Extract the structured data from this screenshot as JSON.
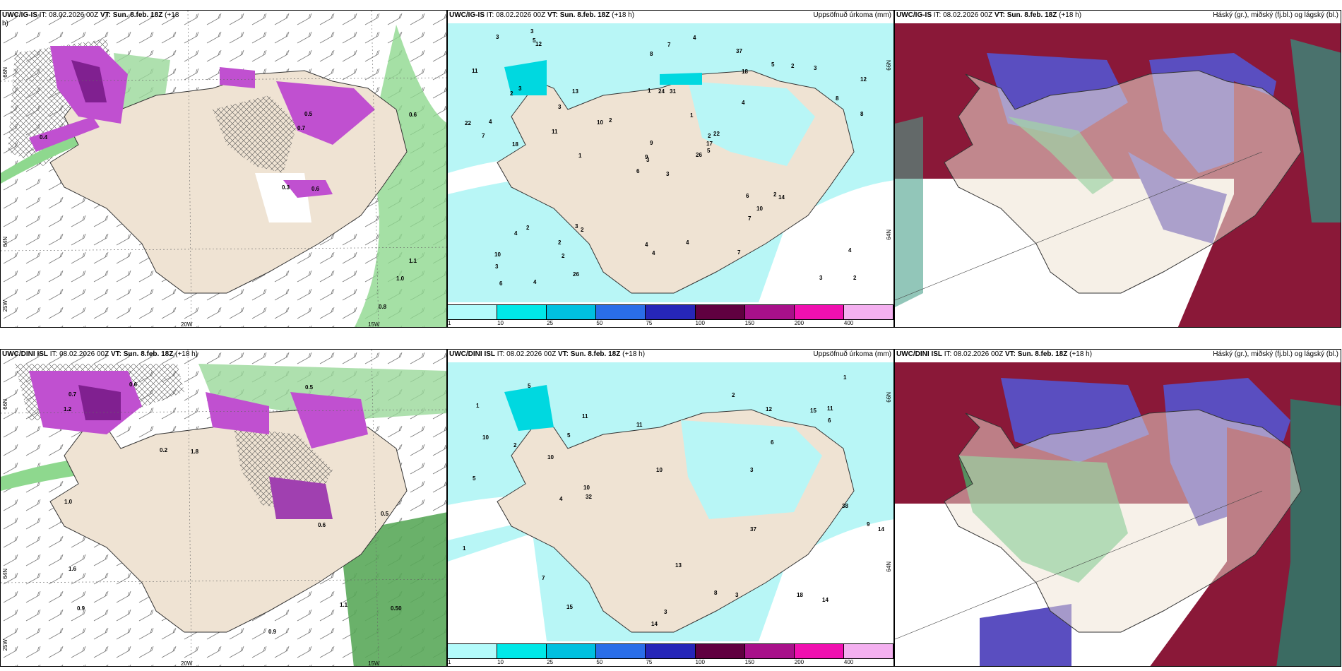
{
  "panels": {
    "p1": {
      "model": "UWC/IG-IS",
      "it": "IT: 08.02.2026 00Z",
      "vt_label": "VT:",
      "vt": "Sun. 8.feb. 18Z",
      "lead": "(+18",
      "lead2": "h)",
      "lat1": "66N",
      "lat2": "64N",
      "lat3": "25W",
      "lon1": "20W",
      "lon2": "15W",
      "lat_r": "",
      "vals": [
        "0.6",
        "0.5",
        "0.6",
        "0.7",
        "1.0",
        "0.8",
        "1.1",
        "0.4",
        "0.3"
      ]
    },
    "p2": {
      "model": "UWC/IG-IS",
      "it": "IT: 08.02.2026 00Z",
      "vt_label": "VT:",
      "vt": "Sun. 8.feb. 18Z",
      "lead": "(+18 h)",
      "title_r": "Uppsöfnuð úrkoma (mm)",
      "lat1": "66N",
      "lat2": "64N",
      "vals": [
        "3",
        "2",
        "3",
        "10",
        "2",
        "2",
        "37",
        "31",
        "18",
        "26",
        "12",
        "2",
        "18",
        "12",
        "6",
        "4",
        "4",
        "1",
        "1",
        "2",
        "2",
        "3",
        "2",
        "24",
        "22",
        "14",
        "3",
        "8",
        "7",
        "6",
        "8",
        "9",
        "4",
        "9",
        "13",
        "5",
        "3",
        "3",
        "4",
        "2",
        "4",
        "10",
        "11",
        "7",
        "26",
        "22",
        "17",
        "6",
        "4",
        "5",
        "4",
        "8",
        "11",
        "10",
        "7",
        "2",
        "5",
        "3",
        "4",
        "3",
        "7",
        "1",
        "4",
        "3",
        "2",
        "3"
      ]
    },
    "p3": {
      "model": "UWC/IG-IS",
      "it": "IT: 08.02.2026 00Z",
      "vt_label": "VT:",
      "vt": "Sun. 8.feb. 18Z",
      "lead": "(+18 h)",
      "title_r": "Háský (gr.), miðský (fj.bl.) og lágský (bl.)"
    },
    "p4": {
      "model": "UWC/DINI ISL",
      "it": "IT: 08.02.2026 00Z",
      "vt_label": "VT:",
      "vt": "Sun. 8.feb. 18Z",
      "lead": "(+18 h)",
      "lat1": "66N",
      "lat2": "64N",
      "lat3": "25W",
      "lon1": "20W",
      "lon2": "15W",
      "vals": [
        "0.6",
        "0.5",
        "0.9",
        "0.6",
        "1.8",
        "1.1",
        "1.6",
        "0.5",
        "0.2",
        "0.9",
        "1.2",
        "1.0",
        "0.7",
        "0.50"
      ]
    },
    "p5": {
      "model": "UWC/DINI ISL",
      "it": "IT: 08.02.2026 00Z",
      "vt_label": "VT:",
      "vt": "Sun. 8.feb. 18Z",
      "lead": "(+18 h)",
      "title_r": "Uppsöfnuð úrkoma (mm)",
      "lat1": "66N",
      "lat2": "64N",
      "vals": [
        "10",
        "5",
        "3",
        "3",
        "15",
        "14",
        "37",
        "32",
        "11",
        "14",
        "9",
        "11",
        "6",
        "7",
        "5",
        "15",
        "10",
        "11",
        "14",
        "8",
        "18",
        "38",
        "10",
        "13",
        "12",
        "10",
        "6",
        "2",
        "5",
        "4",
        "1",
        "3",
        "1",
        "2",
        "1"
      ]
    },
    "p6": {
      "model": "UWC/DINI ISL",
      "it": "IT: 08.02.2026 00Z",
      "vt_label": "VT:",
      "vt": "Sun. 8.feb. 18Z",
      "lead": "(+18 h)",
      "title_r": "Háský (gr.), miðský (fj.bl.) og lágský (bl.)"
    }
  },
  "colorbar": {
    "ticks": [
      "1",
      "10",
      "25",
      "50",
      "75",
      "100",
      "150",
      "200",
      "400"
    ],
    "colors": [
      "#b3fbfb",
      "#00e8e8",
      "#00c0e0",
      "#2a6ee8",
      "#2626b8",
      "#600040",
      "#a8108a",
      "#f010b0",
      "#f4b0f0"
    ]
  },
  "colors": {
    "land": "#efe3d3",
    "sea_precip": "#b8f6f6",
    "green": "#7ed07e",
    "magenta": "#d060d8",
    "dark_red": "#8a1838",
    "blue": "#5a4ec0"
  }
}
